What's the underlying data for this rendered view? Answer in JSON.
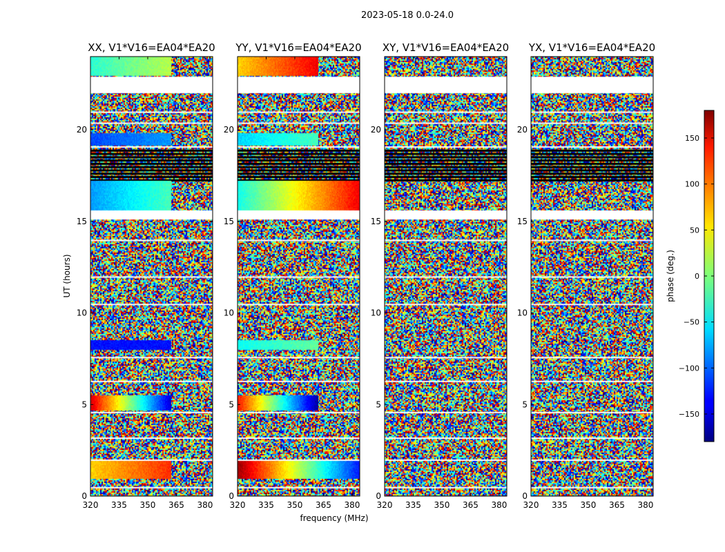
{
  "title": "2023-05-18 0.0-24.0",
  "ylabel": "UT (hours)",
  "xlabel": "frequency (MHz)",
  "colorbar": {
    "label": "phase (deg.)",
    "ticks": [
      150,
      100,
      50,
      0,
      -50,
      -100,
      -150
    ],
    "tick_labels": [
      "150",
      "100",
      "50",
      "0",
      "−50",
      "−100",
      "−150"
    ],
    "range": [
      -180,
      180
    ],
    "colormap": "jet"
  },
  "chart_data": {
    "type": "heatmap",
    "x_range": [
      320,
      384
    ],
    "y_range": [
      0,
      24
    ],
    "x_ticks": [
      320,
      335,
      350,
      365,
      380
    ],
    "y_ticks": [
      0,
      5,
      10,
      15,
      20
    ],
    "panels": [
      {
        "title": "XX, V1*V16=EA04*EA20",
        "pol": "XX"
      },
      {
        "title": "YY, V1*V16=EA04*EA20",
        "pol": "YY"
      },
      {
        "title": "XY, V1*V16=EA04*EA20",
        "pol": "XY"
      },
      {
        "title": "YX, V1*V16=EA04*EA20",
        "pol": "YX"
      }
    ],
    "flagged_ut_gaps": [
      [
        22.0,
        22.9
      ],
      [
        15.1,
        15.6
      ]
    ],
    "coherent_bands": [
      {
        "pol": "XX",
        "ut": [
          1.0,
          1.9
        ],
        "freq": [
          320,
          362
        ],
        "phase_start_deg": 60,
        "phase_end_deg": 120
      },
      {
        "pol": "XX",
        "ut": [
          4.7,
          5.5
        ],
        "freq": [
          320,
          362
        ],
        "phase_start_deg": 150,
        "phase_end_deg": -150
      },
      {
        "pol": "XX",
        "ut": [
          8.0,
          8.5
        ],
        "freq": [
          320,
          362
        ],
        "phase_start_deg": -130,
        "phase_end_deg": -130
      },
      {
        "pol": "XX",
        "ut": [
          15.6,
          17.2
        ],
        "freq": [
          320,
          362
        ],
        "phase_start_deg": -80,
        "phase_end_deg": -20
      },
      {
        "pol": "XX",
        "ut": [
          19.2,
          19.8
        ],
        "freq": [
          320,
          362
        ],
        "phase_start_deg": -110,
        "phase_end_deg": -80
      },
      {
        "pol": "XX",
        "ut": [
          23.0,
          24.0
        ],
        "freq": [
          320,
          362
        ],
        "phase_start_deg": -30,
        "phase_end_deg": 20
      },
      {
        "pol": "YY",
        "ut": [
          1.0,
          1.9
        ],
        "freq": [
          320,
          384
        ],
        "phase_start_deg": 170,
        "phase_end_deg": -130
      },
      {
        "pol": "YY",
        "ut": [
          4.7,
          5.5
        ],
        "freq": [
          320,
          362
        ],
        "phase_start_deg": 130,
        "phase_end_deg": -170
      },
      {
        "pol": "YY",
        "ut": [
          8.0,
          8.5
        ],
        "freq": [
          320,
          362
        ],
        "phase_start_deg": -40,
        "phase_end_deg": -10
      },
      {
        "pol": "YY",
        "ut": [
          15.6,
          17.2
        ],
        "freq": [
          320,
          384
        ],
        "phase_start_deg": -40,
        "phase_end_deg": 140
      },
      {
        "pol": "YY",
        "ut": [
          19.2,
          19.8
        ],
        "freq": [
          320,
          362
        ],
        "phase_start_deg": -60,
        "phase_end_deg": -20
      },
      {
        "pol": "YY",
        "ut": [
          23.0,
          24.0
        ],
        "freq": [
          320,
          362
        ],
        "phase_start_deg": 60,
        "phase_end_deg": 140
      }
    ]
  }
}
